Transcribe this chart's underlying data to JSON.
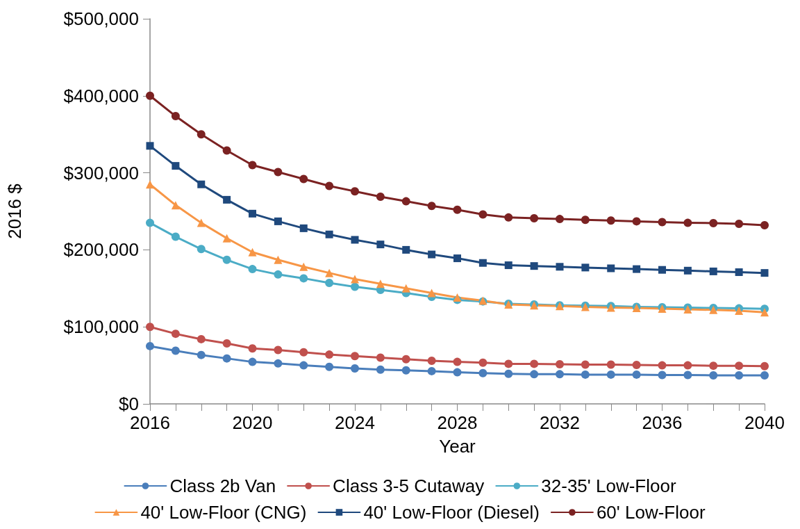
{
  "chart_data": {
    "type": "line",
    "xlabel": "Year",
    "ylabel": "2016 $",
    "x": [
      2016,
      2017,
      2018,
      2019,
      2020,
      2021,
      2022,
      2023,
      2024,
      2025,
      2026,
      2027,
      2028,
      2029,
      2030,
      2031,
      2032,
      2033,
      2034,
      2035,
      2036,
      2037,
      2038,
      2039,
      2040
    ],
    "xlim": [
      2016,
      2040
    ],
    "xticks": [
      2016,
      {
        "value": 2017,
        "label": null
      },
      {
        "value": 2018,
        "label": null
      },
      {
        "value": 2019,
        "label": null
      },
      2020,
      {
        "value": 2021,
        "label": null
      },
      {
        "value": 2022,
        "label": null
      },
      {
        "value": 2023,
        "label": null
      },
      2024,
      {
        "value": 2025,
        "label": null
      },
      {
        "value": 2026,
        "label": null
      },
      {
        "value": 2027,
        "label": null
      },
      2028,
      {
        "value": 2029,
        "label": null
      },
      {
        "value": 2030,
        "label": null
      },
      {
        "value": 2031,
        "label": null
      },
      2032,
      {
        "value": 2033,
        "label": null
      },
      {
        "value": 2034,
        "label": null
      },
      {
        "value": 2035,
        "label": null
      },
      2036,
      {
        "value": 2037,
        "label": null
      },
      {
        "value": 2038,
        "label": null
      },
      {
        "value": 2039,
        "label": null
      },
      2040
    ],
    "ylim": [
      0,
      500000
    ],
    "yticks": [
      {
        "value": 0,
        "label": "$0"
      },
      {
        "value": 100000,
        "label": "$100,000"
      },
      {
        "value": 200000,
        "label": "$200,000"
      },
      {
        "value": 300000,
        "label": "$300,000"
      },
      {
        "value": 400000,
        "label": "$400,000"
      },
      {
        "value": 500000,
        "label": "$500,000"
      }
    ],
    "grid": false,
    "legend": "bottom",
    "line_style": "solid",
    "series": [
      {
        "name": "Class 2b Van",
        "color": "#4a7ebb",
        "marker": "circle",
        "values": [
          75000,
          69000,
          63500,
          59000,
          54500,
          52500,
          50000,
          48000,
          46000,
          44500,
          43500,
          42500,
          41000,
          40000,
          39000,
          38500,
          38500,
          38000,
          38000,
          38000,
          37500,
          37500,
          37000,
          37000,
          37000
        ]
      },
      {
        "name": "Class 3-5 Cutaway",
        "color": "#c0504d",
        "marker": "circle",
        "values": [
          100000,
          91000,
          84000,
          78500,
          72000,
          70000,
          67000,
          64000,
          62000,
          60000,
          58000,
          56000,
          54500,
          53500,
          52000,
          52000,
          51500,
          51000,
          51000,
          50500,
          50000,
          50000,
          49500,
          49500,
          49000
        ]
      },
      {
        "name": "32-35' Low-Floor",
        "color": "#4bacc6",
        "marker": "circle",
        "values": [
          235000,
          217000,
          201000,
          187000,
          175000,
          168000,
          163000,
          157000,
          152000,
          148000,
          144000,
          139000,
          135000,
          133000,
          130000,
          129000,
          128000,
          127500,
          127000,
          126000,
          125500,
          125000,
          124500,
          124000,
          123500
        ]
      },
      {
        "name": "40' Low-Floor (CNG)",
        "color": "#f79646",
        "marker": "triangle",
        "values": [
          285000,
          258000,
          235000,
          215000,
          197000,
          187000,
          178000,
          170000,
          162000,
          156000,
          150000,
          144000,
          138000,
          134000,
          129000,
          128000,
          127000,
          126000,
          125000,
          124500,
          123600,
          122700,
          122000,
          121000,
          119000
        ]
      },
      {
        "name": "40' Low-Floor (Diesel)",
        "color": "#1f497d",
        "marker": "square",
        "values": [
          335000,
          309000,
          285000,
          265000,
          247000,
          237000,
          228000,
          220000,
          213000,
          207000,
          200000,
          194000,
          189000,
          183000,
          180000,
          179000,
          178000,
          177000,
          176000,
          175000,
          174000,
          173000,
          172000,
          171000,
          170000
        ]
      },
      {
        "name": "60' Low-Floor",
        "color": "#7b2222",
        "marker": "circle",
        "values": [
          400000,
          373600,
          350000,
          329000,
          310000,
          301000,
          292000,
          283000,
          276000,
          269000,
          263000,
          257000,
          252000,
          246000,
          242000,
          241000,
          240000,
          239000,
          238000,
          237000,
          236000,
          235000,
          234700,
          233700,
          232000
        ]
      }
    ]
  }
}
